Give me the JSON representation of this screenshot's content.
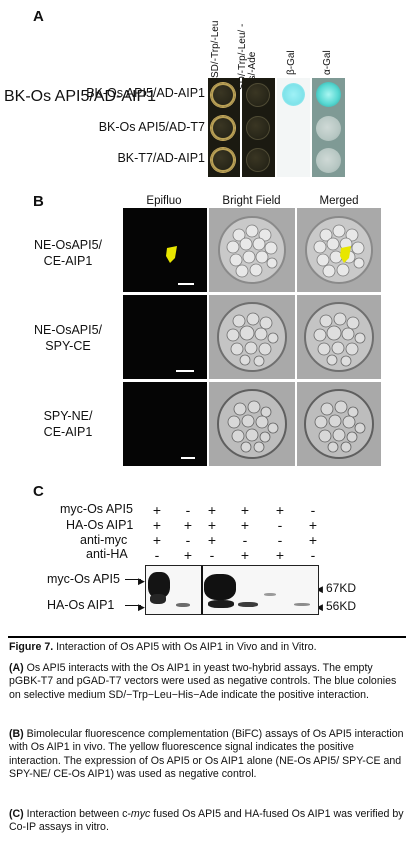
{
  "panel_a": {
    "letter": "A",
    "columns": [
      "SD/-Trp/-Leu",
      "SD/-Trp/-Leu/ -His/-Ade",
      "β-Gal",
      "α-Gal"
    ],
    "rows": [
      "BK-Os API5/AD-AIP1",
      "BK-Os API5/AD-T7",
      "BK-T7/AD-AIP1"
    ]
  },
  "panel_b": {
    "letter": "B",
    "columns": [
      "Epifluo",
      "Bright Field",
      "Merged"
    ],
    "rows": [
      {
        "line1": "NE-OsAPI5/",
        "line2": "CE-AIP1"
      },
      {
        "line1": "NE-OsAPI5/",
        "line2": "SPY-CE"
      },
      {
        "line1": "SPY-NE/",
        "line2": "CE-AIP1"
      }
    ]
  },
  "panel_c": {
    "letter": "C",
    "rows": [
      {
        "label": "myc-Os API5",
        "signs": [
          "+",
          "-",
          "+",
          "+",
          "+",
          "-"
        ]
      },
      {
        "label": "HA-Os AIP1",
        "signs": [
          "+",
          "+",
          "+",
          "+",
          "-",
          "+"
        ]
      },
      {
        "label": "anti-myc",
        "signs": [
          "+",
          "-",
          "+",
          "-",
          "-",
          "+"
        ]
      },
      {
        "label": "anti-HA",
        "signs": [
          "-",
          "+",
          "-",
          "+",
          "+",
          "-"
        ]
      }
    ],
    "blot_left": [
      "myc-Os API5",
      "HA-Os AIP1"
    ],
    "blot_right": [
      "67KD",
      "56KD"
    ]
  },
  "caption": {
    "fig_label": "Figure 7.",
    "fig_title": " Interaction of Os API5 with Os AIP1 in Vivo and in Vitro.",
    "a_label": "(A)",
    "a_text": " Os API5 interacts with the Os AIP1 in yeast two-hybrid assays. The empty pGBK-T7 and pGAD-T7 vectors were used as negative controls. The blue colonies on selective medium SD/−Trp−Leu−His−Ade indicate the positive interaction.",
    "b_label": "(B)",
    "b_text": " Bimolecular fluorescence complementation (BiFC) assays of Os API5 interaction with Os AIP1 in vivo. The yellow fluorescence signal indicates the positive interaction. The expression of Os API5 or Os AIP1 alone (NE-Os API5/ SPY-CE and SPY-NE/ CE-Os AIP1) was used as negative control.",
    "c_label": "(C)",
    "c_text_1": " Interaction between c-",
    "c_text_myc": "myc",
    "c_text_2": " fused Os API5 and HA-fused Os AIP1 was verified by Co-IP assays in vitro."
  },
  "colors": {
    "yeast_dark": "#2a281a",
    "blue_colony": "#7fe3ea",
    "yfp": "#e8e600",
    "rule": "#000000"
  }
}
